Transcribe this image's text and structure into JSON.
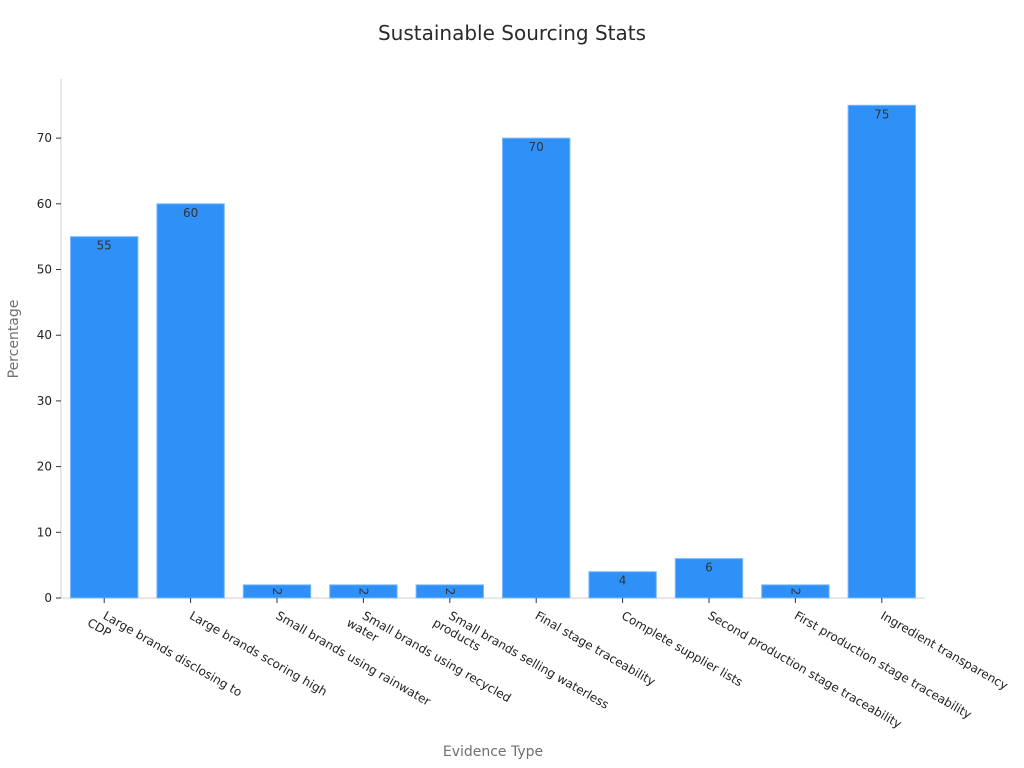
{
  "chart_data": {
    "type": "bar",
    "title": "Sustainable Sourcing Stats",
    "xlabel": "Evidence Type",
    "ylabel": "Percentage",
    "categories": [
      [
        "Large brands disclosing to",
        "CDP"
      ],
      [
        "Large brands scoring high"
      ],
      [
        "Small brands using rainwater"
      ],
      [
        "Small brands using recycled",
        "water"
      ],
      [
        "Small brands selling waterless",
        "products"
      ],
      [
        "Final stage traceability"
      ],
      [
        "Complete supplier lists"
      ],
      [
        "Second production stage traceability"
      ],
      [
        "First production stage traceability"
      ],
      [
        "Ingredient transparency"
      ]
    ],
    "values": [
      55,
      60,
      2,
      2,
      2,
      70,
      4,
      6,
      2,
      75
    ],
    "ylim": [
      0,
      79
    ],
    "yticks": [
      0,
      10,
      20,
      30,
      40,
      50,
      60,
      70
    ],
    "grid": false,
    "colors": {
      "bar_fill": "#2f91f8",
      "bar_stroke": "#7ab8fb"
    }
  }
}
